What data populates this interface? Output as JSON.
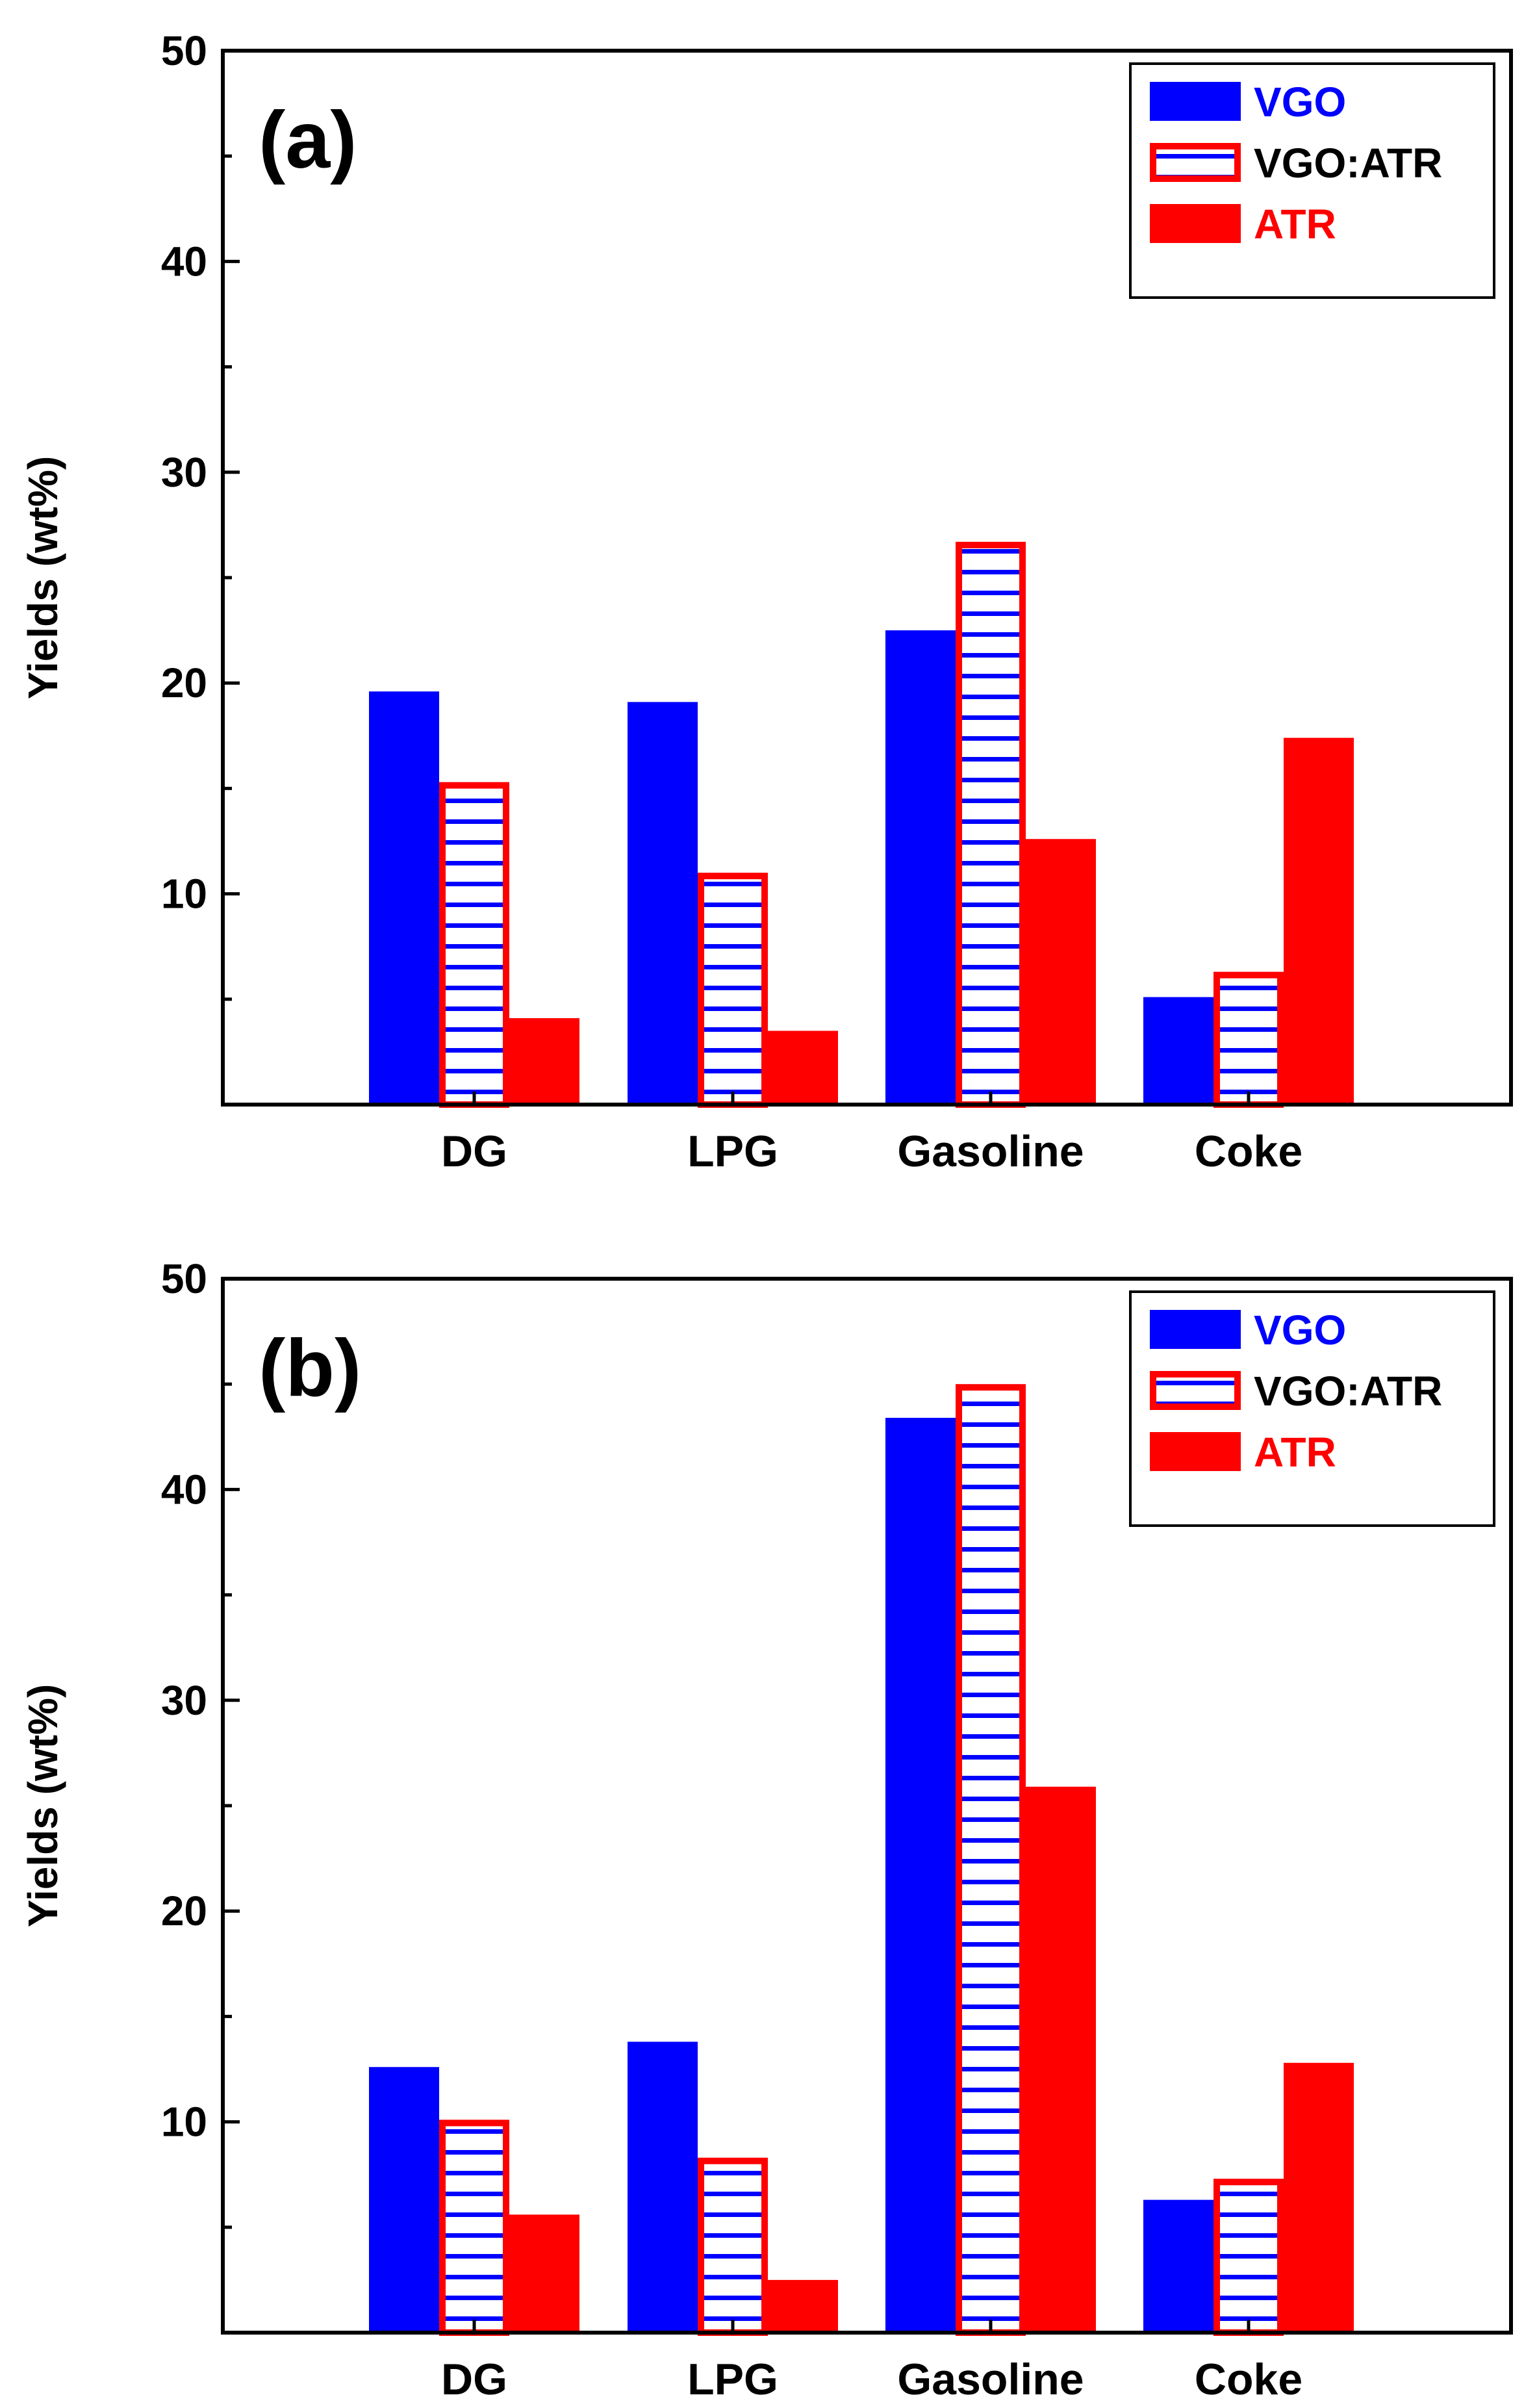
{
  "colors": {
    "vgo": "#0000ff",
    "vgo_atr_border": "#ff0000",
    "vgo_atr_hatch": "#0000ff",
    "atr": "#ff0000",
    "axis": "#000000",
    "legend_text_mixed": "#000000"
  },
  "chart_data": [
    {
      "type": "bar",
      "panel_label": "(a)",
      "ylabel": "Yields (wt%)",
      "xlabel": "",
      "ylim": [
        0,
        50
      ],
      "yticks": [
        10,
        20,
        30,
        40,
        50
      ],
      "categories": [
        "DG",
        "LPG",
        "Gasoline",
        "Coke"
      ],
      "legend_position": "top-right",
      "series": [
        {
          "name": "VGO",
          "style": "solid",
          "values": [
            19.6,
            19.1,
            22.5,
            5.1
          ]
        },
        {
          "name": "VGO:ATR",
          "style": "hatched",
          "values": [
            15.3,
            11.0,
            26.7,
            6.3
          ]
        },
        {
          "name": "ATR",
          "style": "solid",
          "values": [
            4.1,
            3.5,
            12.6,
            17.4
          ]
        }
      ]
    },
    {
      "type": "bar",
      "panel_label": "(b)",
      "ylabel": "Yields (wt%)",
      "xlabel": "",
      "ylim": [
        0,
        50
      ],
      "yticks": [
        10,
        20,
        30,
        40,
        50
      ],
      "categories": [
        "DG",
        "LPG",
        "Gasoline",
        "Coke"
      ],
      "legend_position": "top-right",
      "series": [
        {
          "name": "VGO",
          "style": "solid",
          "values": [
            12.6,
            13.8,
            43.4,
            6.3
          ]
        },
        {
          "name": "VGO:ATR",
          "style": "hatched",
          "values": [
            10.1,
            8.3,
            45.0,
            7.3
          ]
        },
        {
          "name": "ATR",
          "style": "solid",
          "values": [
            5.6,
            2.5,
            25.9,
            12.8
          ]
        }
      ]
    }
  ]
}
